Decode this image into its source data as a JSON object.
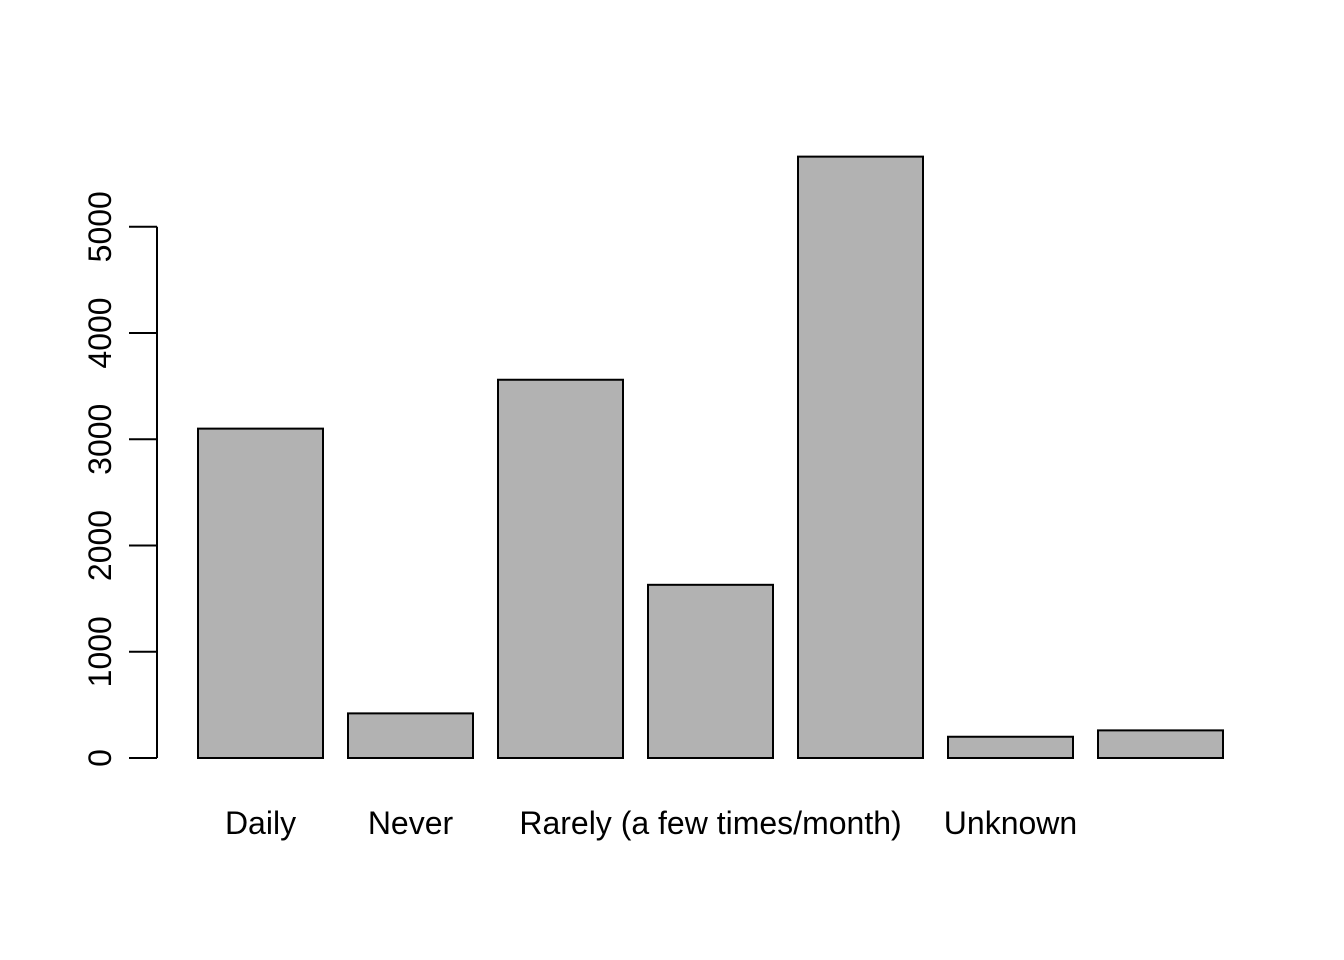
{
  "chart_data": {
    "type": "bar",
    "title": "",
    "xlabel": "",
    "ylabel": "",
    "categories": [
      "Daily",
      "Never",
      "",
      "Rarely (a few times/month)",
      "",
      "Unknown",
      ""
    ],
    "values": [
      3100,
      420,
      3560,
      1630,
      5660,
      200,
      260
    ],
    "yticks": [
      0,
      1000,
      2000,
      3000,
      4000,
      5000
    ],
    "ytick_labels": [
      "0",
      "1000",
      "2000",
      "3000",
      "4000",
      "5000"
    ],
    "ylim": [
      0,
      5660
    ],
    "bar_color": "#b2b2b2",
    "grid": false,
    "legend": "none"
  }
}
